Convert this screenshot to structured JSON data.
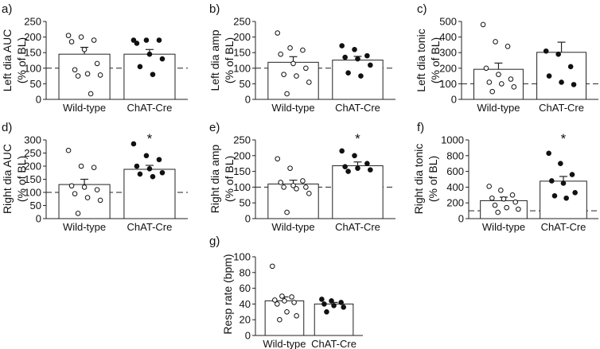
{
  "figure": {
    "colors": {
      "axis": "#222222",
      "bar_fill": "#ffffff",
      "open_marker": "#ffffff",
      "filled_marker": "#111111",
      "reference_line": "#222222"
    }
  },
  "chart_data": [
    {
      "type": "bar",
      "panel_label": "a)",
      "ylabel_lines": [
        "Left dia AUC",
        "(% of BL)"
      ],
      "categories": [
        "Wild-type",
        "ChAT-Cre"
      ],
      "values": [
        145,
        145
      ],
      "sem": [
        22,
        15
      ],
      "ylim": [
        0,
        250
      ],
      "yticks": [
        0,
        50,
        100,
        150,
        200,
        250
      ],
      "reference_line": 100,
      "points": [
        [
          205,
          200,
          190,
          185,
          160,
          115,
          95,
          82,
          78,
          75,
          18
        ],
        [
          190,
          190,
          190,
          180,
          145,
          130,
          105,
          80
        ]
      ],
      "significance": [
        "",
        ""
      ]
    },
    {
      "type": "bar",
      "panel_label": "b)",
      "ylabel_lines": [
        "Left dia amp",
        "(% of BL)"
      ],
      "categories": [
        "Wild-type",
        "ChAT-Cre"
      ],
      "values": [
        119,
        126
      ],
      "sem": [
        18,
        12
      ],
      "ylim": [
        0,
        250
      ],
      "yticks": [
        0,
        50,
        100,
        150,
        200,
        250
      ],
      "reference_line": 100,
      "points": [
        [
          213,
          165,
          158,
          145,
          115,
          100,
          80,
          75,
          55,
          18
        ],
        [
          172,
          160,
          140,
          135,
          130,
          110,
          85,
          75
        ]
      ],
      "significance": [
        "",
        ""
      ]
    },
    {
      "type": "bar",
      "panel_label": "c)",
      "ylabel_lines": [
        "Left dia tonic",
        "(% of BL)"
      ],
      "categories": [
        "Wild-type",
        "ChAT-Cre"
      ],
      "values": [
        193,
        302
      ],
      "sem": [
        40,
        65
      ],
      "ylim": [
        0,
        500
      ],
      "yticks": [
        0,
        100,
        200,
        300,
        400,
        500
      ],
      "reference_line": 100,
      "points": [
        [
          480,
          370,
          340,
          200,
          160,
          130,
          110,
          100,
          80,
          50
        ],
        [
          310,
          290,
          210,
          150,
          110,
          95
        ]
      ],
      "significance": [
        "",
        ""
      ]
    },
    {
      "type": "bar",
      "panel_label": "d)",
      "ylabel_lines": [
        "Right dia AUC",
        "(% of BL)"
      ],
      "categories": [
        "Wild-type",
        "ChAT-Cre"
      ],
      "values": [
        130,
        188
      ],
      "sem": [
        20,
        15
      ],
      "ylim": [
        0,
        300
      ],
      "yticks": [
        0,
        50,
        100,
        150,
        200,
        250,
        300
      ],
      "reference_line": 100,
      "points": [
        [
          260,
          200,
          195,
          125,
          120,
          110,
          95,
          80,
          70,
          20
        ],
        [
          285,
          240,
          225,
          200,
          190,
          175,
          170,
          160
        ]
      ],
      "significance": [
        "",
        "*"
      ]
    },
    {
      "type": "bar",
      "panel_label": "e)",
      "ylabel_lines": [
        "Right dia amp",
        "(% of BL)"
      ],
      "categories": [
        "Wild-type",
        "ChAT-Cre"
      ],
      "values": [
        110,
        168
      ],
      "sem": [
        12,
        12
      ],
      "ylim": [
        0,
        250
      ],
      "yticks": [
        0,
        50,
        100,
        150,
        200,
        250
      ],
      "reference_line": 100,
      "points": [
        [
          190,
          160,
          120,
          115,
          105,
          100,
          100,
          95,
          80,
          20
        ],
        [
          215,
          200,
          175,
          165,
          160,
          155,
          150
        ]
      ],
      "significance": [
        "",
        "*"
      ]
    },
    {
      "type": "bar",
      "panel_label": "f)",
      "ylabel_lines": [
        "Right dia tonic",
        "(% of BL)"
      ],
      "categories": [
        "Wild-type",
        "ChAT-Cre"
      ],
      "values": [
        228,
        476
      ],
      "sem": [
        45,
        60
      ],
      "ylim": [
        0,
        1000
      ],
      "yticks": [
        0,
        200,
        400,
        600,
        800,
        1000
      ],
      "reference_line": 100,
      "points": [
        [
          410,
          360,
          300,
          260,
          250,
          210,
          170,
          140,
          120,
          80
        ],
        [
          830,
          700,
          560,
          480,
          450,
          330,
          290,
          260
        ]
      ],
      "significance": [
        "",
        "*"
      ]
    },
    {
      "type": "bar",
      "panel_label": "g)",
      "ylabel_lines": [
        "Resp rate (bpm)"
      ],
      "categories": [
        "Wild-type",
        "ChAT-Cre"
      ],
      "values": [
        44,
        40
      ],
      "sem": [
        5,
        2
      ],
      "ylim": [
        0,
        100
      ],
      "yticks": [
        0,
        20,
        40,
        60,
        80,
        100
      ],
      "reference_line": null,
      "points": [
        [
          88,
          50,
          49,
          45,
          44,
          42,
          40,
          30,
          25,
          20
        ],
        [
          46,
          44,
          42,
          40,
          38,
          36,
          30
        ]
      ],
      "significance": [
        "",
        ""
      ]
    }
  ]
}
